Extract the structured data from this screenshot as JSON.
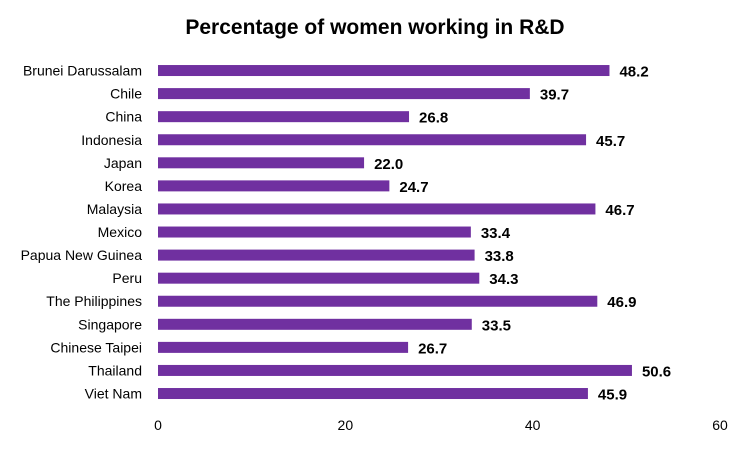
{
  "chart_data": {
    "type": "bar",
    "orientation": "horizontal",
    "title": "Percentage of women working in R&D",
    "categories": [
      "Brunei Darussalam",
      "Chile",
      "China",
      "Indonesia",
      "Japan",
      "Korea",
      "Malaysia",
      "Mexico",
      "Papua New Guinea",
      "Peru",
      "The Philippines",
      "Singapore",
      "Chinese Taipei",
      "Thailand",
      "Viet Nam"
    ],
    "values": [
      48.2,
      39.7,
      26.8,
      45.7,
      22.0,
      24.7,
      46.7,
      33.4,
      33.8,
      34.3,
      46.9,
      33.5,
      26.7,
      50.6,
      45.9
    ],
    "value_labels": [
      "48.2",
      "39.7",
      "26.8",
      "45.7",
      "22.0",
      "24.7",
      "46.7",
      "33.4",
      "33.8",
      "34.3",
      "46.9",
      "33.5",
      "26.7",
      "50.6",
      "45.9"
    ],
    "x_ticks": [
      "0",
      "20",
      "40",
      "60"
    ],
    "xlim": [
      0,
      60
    ],
    "bar_color": "#7030a0",
    "grid": false,
    "legend": "none"
  }
}
